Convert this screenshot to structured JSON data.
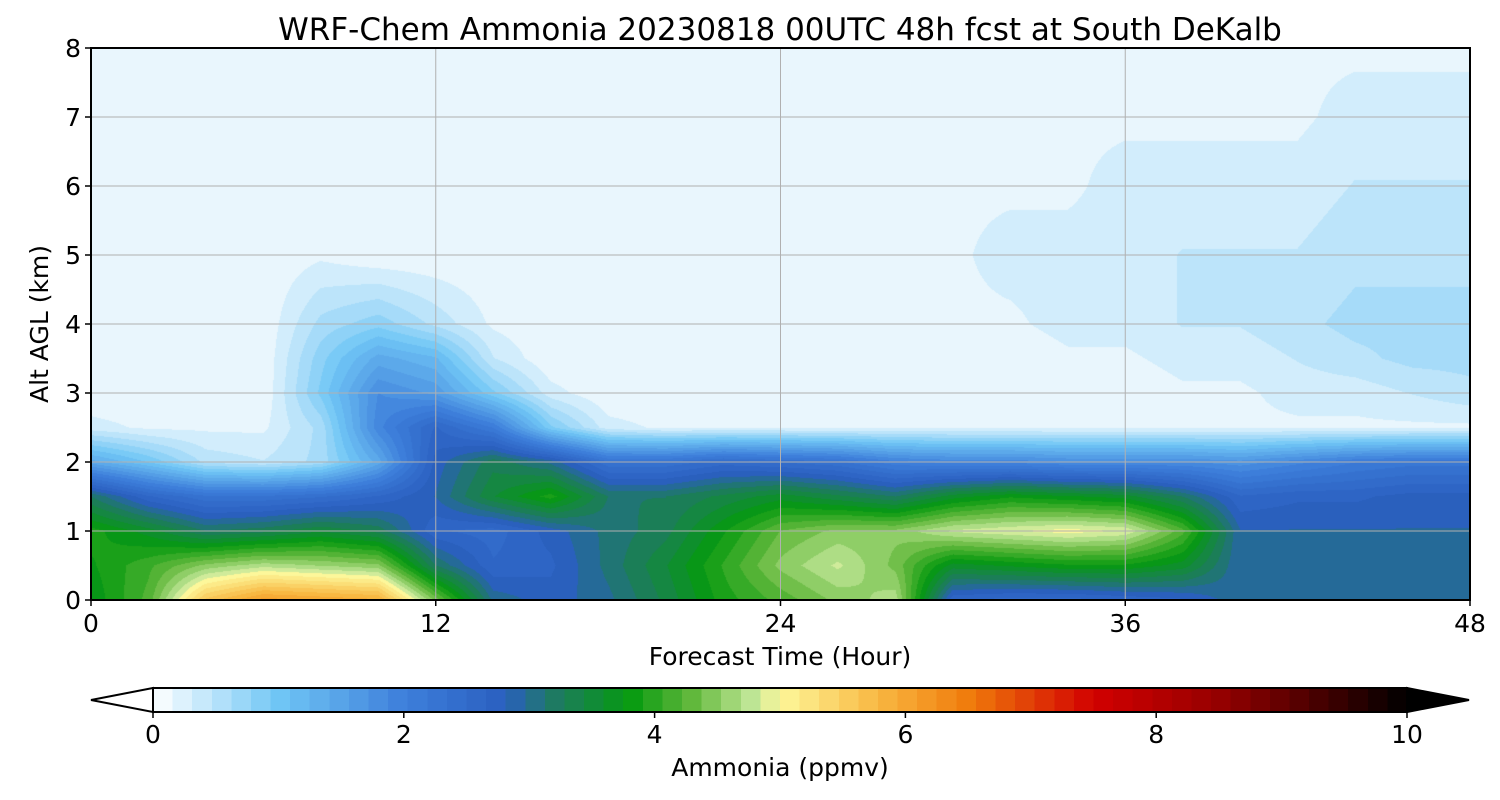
{
  "chart_data": {
    "type": "heatmap",
    "title": "WRF-Chem Ammonia  20230818 00UTC 48h fcst at South DeKalb",
    "xlabel": "Forecast Time (Hour)",
    "ylabel": "Alt AGL (km)",
    "xlim": [
      0,
      48
    ],
    "ylim": [
      0,
      8
    ],
    "x_ticks": [
      "0",
      "12",
      "24",
      "36",
      "48"
    ],
    "y_ticks": [
      "0",
      "1",
      "2",
      "3",
      "4",
      "5",
      "6",
      "7",
      "8"
    ],
    "grid": true,
    "x": [
      0,
      2,
      4,
      6,
      8,
      10,
      12,
      14,
      16,
      18,
      20,
      22,
      24,
      26,
      28,
      30,
      32,
      34,
      36,
      38,
      40,
      42,
      44,
      46,
      48
    ],
    "y": [
      0,
      0.5,
      1,
      1.5,
      2,
      2.5,
      3,
      3.5,
      4,
      5,
      6,
      7,
      8
    ],
    "z": [
      [
        3.7,
        4.2,
        5.6,
        6.1,
        6.0,
        5.9,
        4.4,
        3.0,
        2.8,
        3.0,
        3.4,
        3.9,
        4.2,
        4.5,
        4.7,
        2.6,
        2.5,
        2.5,
        2.6,
        2.7,
        3.0,
        3.0,
        3.0,
        3.0,
        3.0
      ],
      [
        3.8,
        4.1,
        4.5,
        4.7,
        4.6,
        4.5,
        3.2,
        2.6,
        2.7,
        3.1,
        3.5,
        4.0,
        4.5,
        4.8,
        4.4,
        3.6,
        3.7,
        3.8,
        3.8,
        3.6,
        2.9,
        3.0,
        3.0,
        3.0,
        3.0
      ],
      [
        3.9,
        3.6,
        3.2,
        3.3,
        3.5,
        3.3,
        2.6,
        2.5,
        2.8,
        3.1,
        3.3,
        3.8,
        4.3,
        4.5,
        4.5,
        4.8,
        4.9,
        5.0,
        4.9,
        4.2,
        2.9,
        2.9,
        2.9,
        2.9,
        2.9
      ],
      [
        3.2,
        2.6,
        2.3,
        2.3,
        2.4,
        2.6,
        2.9,
        3.5,
        3.9,
        3.2,
        3.2,
        3.4,
        3.6,
        3.4,
        3.2,
        3.6,
        3.8,
        3.7,
        3.6,
        3.2,
        2.6,
        2.7,
        2.7,
        2.8,
        2.8
      ],
      [
        1.4,
        1.0,
        0.5,
        0.4,
        0.6,
        1.4,
        2.8,
        3.3,
        3.0,
        2.3,
        2.3,
        2.5,
        2.4,
        2.3,
        2.0,
        1.9,
        1.9,
        1.8,
        1.8,
        1.8,
        1.7,
        1.9,
        2.1,
        2.2,
        2.2
      ],
      [
        0.3,
        0.2,
        0.2,
        0.2,
        0.6,
        1.9,
        2.6,
        2.1,
        0.9,
        0.3,
        0.2,
        0.2,
        0.2,
        0.2,
        0.2,
        0.2,
        0.2,
        0.2,
        0.2,
        0.2,
        0.2,
        0.2,
        0.2,
        0.2,
        0.2
      ],
      [
        0.1,
        0.1,
        0.1,
        0.1,
        0.9,
        1.8,
        1.6,
        0.9,
        0.3,
        0.1,
        0.1,
        0.1,
        0.1,
        0.1,
        0.1,
        0.1,
        0.1,
        0.1,
        0.1,
        0.2,
        0.2,
        0.3,
        0.3,
        0.4,
        0.5
      ],
      [
        0.1,
        0.1,
        0.1,
        0.1,
        0.8,
        1.4,
        1.2,
        0.4,
        0.1,
        0.1,
        0.1,
        0.1,
        0.1,
        0.1,
        0.1,
        0.1,
        0.1,
        0.2,
        0.2,
        0.3,
        0.3,
        0.4,
        0.5,
        0.6,
        0.6
      ],
      [
        0.1,
        0.1,
        0.2,
        0.1,
        0.6,
        0.8,
        0.5,
        0.2,
        0.1,
        0.1,
        0.1,
        0.1,
        0.1,
        0.1,
        0.2,
        0.2,
        0.2,
        0.3,
        0.3,
        0.4,
        0.4,
        0.5,
        0.6,
        0.6,
        0.6
      ],
      [
        0.1,
        0.1,
        0.1,
        0.1,
        0.2,
        0.1,
        0.1,
        0.1,
        0.1,
        0.1,
        0.1,
        0.1,
        0.1,
        0.1,
        0.2,
        0.2,
        0.3,
        0.3,
        0.3,
        0.4,
        0.4,
        0.4,
        0.5,
        0.5,
        0.5
      ],
      [
        0.1,
        0.1,
        0.1,
        0.1,
        0.1,
        0.1,
        0.1,
        0.1,
        0.1,
        0.1,
        0.1,
        0.1,
        0.1,
        0.1,
        0.1,
        0.2,
        0.2,
        0.2,
        0.3,
        0.3,
        0.3,
        0.3,
        0.4,
        0.4,
        0.4
      ],
      [
        0.1,
        0.1,
        0.1,
        0.1,
        0.1,
        0.1,
        0.1,
        0.1,
        0.1,
        0.1,
        0.1,
        0.1,
        0.1,
        0.1,
        0.1,
        0.2,
        0.1,
        0.2,
        0.2,
        0.2,
        0.2,
        0.2,
        0.3,
        0.3,
        0.3
      ],
      [
        0.1,
        0.1,
        0.1,
        0.1,
        0.1,
        0.1,
        0.1,
        0.1,
        0.1,
        0.1,
        0.1,
        0.1,
        0.1,
        0.1,
        0.1,
        0.1,
        0.1,
        0.1,
        0.1,
        0.2,
        0.2,
        0.2,
        0.2,
        0.2,
        0.2
      ]
    ],
    "colorbar": {
      "label": "Ammonia  (ppmv)",
      "ticks": [
        "0",
        "2",
        "4",
        "6",
        "8",
        "10"
      ],
      "range": [
        0,
        10
      ],
      "extend": "both",
      "stops": [
        {
          "v": 0,
          "c": "#ffffff"
        },
        {
          "v": 1,
          "c": "#70c6f5"
        },
        {
          "v": 2,
          "c": "#3e7fdb"
        },
        {
          "v": 2.8,
          "c": "#2a5fc0"
        },
        {
          "v": 3.2,
          "c": "#1e7a62"
        },
        {
          "v": 3.8,
          "c": "#069a10"
        },
        {
          "v": 4.3,
          "c": "#62b83c"
        },
        {
          "v": 4.8,
          "c": "#c4e89a"
        },
        {
          "v": 5.0,
          "c": "#fdf79a"
        },
        {
          "v": 5.8,
          "c": "#f8b640"
        },
        {
          "v": 6.5,
          "c": "#f07c0c"
        },
        {
          "v": 7.5,
          "c": "#d20000"
        },
        {
          "v": 8.5,
          "c": "#960000"
        },
        {
          "v": 10,
          "c": "#000000"
        }
      ]
    }
  }
}
